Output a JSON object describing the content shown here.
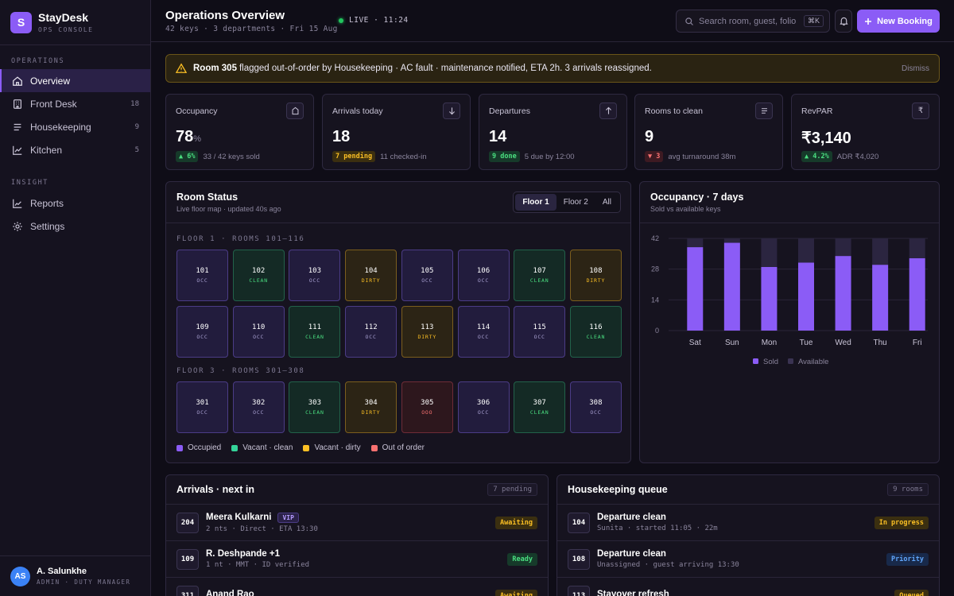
{
  "brand": {
    "logo_letter": "S",
    "name": "StayDesk",
    "sub": "OPS CONSOLE"
  },
  "sidebar": {
    "sections": [
      {
        "label": "OPERATIONS",
        "items": [
          {
            "label": "Overview",
            "icon": "home-icon",
            "active": true
          },
          {
            "label": "Front Desk",
            "icon": "building-icon",
            "count": "18"
          },
          {
            "label": "Housekeeping",
            "icon": "list-icon",
            "count": "9"
          },
          {
            "label": "Kitchen",
            "icon": "trend-icon",
            "count": "5"
          }
        ]
      },
      {
        "label": "INSIGHT",
        "items": [
          {
            "label": "Reports",
            "icon": "chart-icon"
          },
          {
            "label": "Settings",
            "icon": "gear-icon"
          }
        ]
      }
    ],
    "user": {
      "initials": "AS",
      "name": "A. Salunkhe",
      "role": "ADMIN · DUTY MANAGER"
    }
  },
  "header": {
    "title": "Operations Overview",
    "subtitle": "42 keys · 3 departments · Fri 15 Aug",
    "live_label": "LIVE · 11:24",
    "search_placeholder": "Search room, guest, folio",
    "search_shortcut": "⌘K",
    "new_booking": "New Booking"
  },
  "alert": {
    "room": "Room 305",
    "message": "flagged out-of-order by Housekeeping · AC fault · maintenance notified, ETA 2h. 3 arrivals reassigned.",
    "dismiss": "Dismiss"
  },
  "kpis": [
    {
      "label": "Occupancy",
      "icon": "bell-desk-icon",
      "value": "78",
      "unit": "%",
      "chip": "▲ 6%",
      "chip_color": "green",
      "foot": "33 / 42 keys sold"
    },
    {
      "label": "Arrivals today",
      "icon": "arrow-down-icon",
      "value": "18",
      "unit": "",
      "chip": "7 pending",
      "chip_color": "amber",
      "foot": "11 checked-in"
    },
    {
      "label": "Departures",
      "icon": "arrow-up-icon",
      "value": "14",
      "unit": "",
      "chip": "9 done",
      "chip_color": "green",
      "foot": "5 due by 12:00"
    },
    {
      "label": "Rooms to clean",
      "icon": "list-icon",
      "value": "9",
      "unit": "",
      "chip": "▼ 3",
      "chip_color": "red",
      "foot": "avg turnaround 38m"
    },
    {
      "label": "RevPAR",
      "icon": "rupee-icon",
      "value": "₹3,140",
      "unit": "",
      "chip": "▲ 4.2%",
      "chip_color": "green",
      "foot": "ADR ₹4,020"
    }
  ],
  "room_status": {
    "title": "Room Status",
    "subtitle": "Live floor map · updated 40s ago",
    "tabs": [
      {
        "label": "Floor 1",
        "active": true
      },
      {
        "label": "Floor 2"
      },
      {
        "label": "All"
      }
    ],
    "floors": [
      {
        "label": "FLOOR 1 · ROOMS 101–116",
        "rooms": [
          {
            "num": "101",
            "status": "OCC",
            "kind": "occ"
          },
          {
            "num": "102",
            "status": "CLEAN",
            "kind": "clean"
          },
          {
            "num": "103",
            "status": "OCC",
            "kind": "occ"
          },
          {
            "num": "104",
            "status": "DIRTY",
            "kind": "dirty"
          },
          {
            "num": "105",
            "status": "OCC",
            "kind": "occ"
          },
          {
            "num": "106",
            "status": "OCC",
            "kind": "occ"
          },
          {
            "num": "107",
            "status": "CLEAN",
            "kind": "clean"
          },
          {
            "num": "108",
            "status": "DIRTY",
            "kind": "dirty"
          },
          {
            "num": "109",
            "status": "OCC",
            "kind": "occ"
          },
          {
            "num": "110",
            "status": "OCC",
            "kind": "occ"
          },
          {
            "num": "111",
            "status": "CLEAN",
            "kind": "clean"
          },
          {
            "num": "112",
            "status": "OCC",
            "kind": "occ"
          },
          {
            "num": "113",
            "status": "DIRTY",
            "kind": "dirty"
          },
          {
            "num": "114",
            "status": "OCC",
            "kind": "occ"
          },
          {
            "num": "115",
            "status": "OCC",
            "kind": "occ"
          },
          {
            "num": "116",
            "status": "CLEAN",
            "kind": "clean"
          }
        ]
      },
      {
        "label": "FLOOR 3 · ROOMS 301–308",
        "rooms": [
          {
            "num": "301",
            "status": "OCC",
            "kind": "occ"
          },
          {
            "num": "302",
            "status": "OCC",
            "kind": "occ"
          },
          {
            "num": "303",
            "status": "CLEAN",
            "kind": "clean"
          },
          {
            "num": "304",
            "status": "DIRTY",
            "kind": "dirty"
          },
          {
            "num": "305",
            "status": "OOO",
            "kind": "ooo"
          },
          {
            "num": "306",
            "status": "OCC",
            "kind": "occ"
          },
          {
            "num": "307",
            "status": "CLEAN",
            "kind": "clean"
          },
          {
            "num": "308",
            "status": "OCC",
            "kind": "occ"
          }
        ]
      }
    ],
    "legend": [
      {
        "label": "Occupied",
        "color": "#8b5cf6"
      },
      {
        "label": "Vacant · clean",
        "color": "#34d399"
      },
      {
        "label": "Vacant · dirty",
        "color": "#fbbf24"
      },
      {
        "label": "Out of order",
        "color": "#f87171"
      }
    ]
  },
  "occupancy_chart": {
    "title": "Occupancy · 7 days",
    "subtitle": "Sold vs available keys"
  },
  "chart_data": {
    "type": "bar",
    "stacked": true,
    "categories": [
      "Sat",
      "Sun",
      "Mon",
      "Tue",
      "Wed",
      "Thu",
      "Fri"
    ],
    "series": [
      {
        "name": "Sold",
        "values": [
          38,
          40,
          29,
          31,
          34,
          30,
          33
        ],
        "color": "#8b5cf6"
      },
      {
        "name": "Available",
        "values": [
          4,
          2,
          13,
          11,
          8,
          12,
          9
        ],
        "color": "#2b2540"
      }
    ],
    "yticks": [
      "0",
      "14",
      "28",
      "42"
    ],
    "ylim": [
      0,
      42
    ],
    "grid": true,
    "legend_position": "bottom"
  },
  "arrivals": {
    "title": "Arrivals · next in",
    "count": "7 pending",
    "rows": [
      {
        "room": "204",
        "name": "Meera Kulkarni",
        "vip": "VIP",
        "sub": "2 nts · Direct · ETA 13:30",
        "tag": "Awaiting",
        "tag_color": "amber"
      },
      {
        "room": "109",
        "name": "R. Deshpande +1",
        "vip": "",
        "sub": "1 nt · MMT · ID verified",
        "tag": "Ready",
        "tag_color": "green"
      },
      {
        "room": "311",
        "name": "Anand Rao",
        "vip": "",
        "sub": "",
        "tag": "Awaiting",
        "tag_color": "amber"
      }
    ]
  },
  "housekeeping": {
    "title": "Housekeeping queue",
    "count": "9 rooms",
    "rows": [
      {
        "room": "104",
        "name": "Departure clean",
        "sub": "Sunita · started 11:05 · 22m",
        "tag": "In progress",
        "tag_color": "amber"
      },
      {
        "room": "108",
        "name": "Departure clean",
        "sub": "Unassigned · guest arriving 13:30",
        "tag": "Priority",
        "tag_color": "blue"
      },
      {
        "room": "113",
        "name": "Stayover refresh",
        "sub": "",
        "tag": "Queued",
        "tag_color": "amber"
      }
    ]
  }
}
